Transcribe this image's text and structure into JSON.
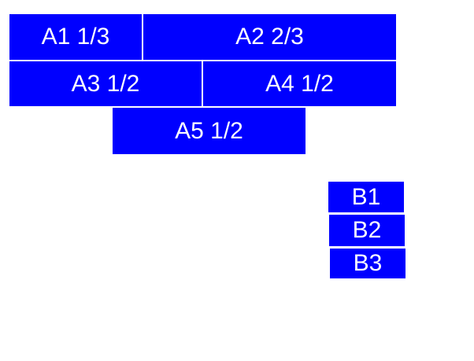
{
  "colors": {
    "canvas_bg": "#ffffff",
    "box_fill": "#0000ff",
    "box_text": "#ffffff"
  },
  "groupA": {
    "items": [
      {
        "id": "A1",
        "label": "A1 1/3",
        "fraction": "1/3"
      },
      {
        "id": "A2",
        "label": "A2 2/3",
        "fraction": "2/3"
      },
      {
        "id": "A3",
        "label": "A3 1/2",
        "fraction": "1/2"
      },
      {
        "id": "A4",
        "label": "A4 1/2",
        "fraction": "1/2"
      },
      {
        "id": "A5",
        "label": "A5 1/2",
        "fraction": "1/2"
      }
    ]
  },
  "groupB": {
    "items": [
      {
        "id": "B1",
        "label": "B1"
      },
      {
        "id": "B2",
        "label": "B2"
      },
      {
        "id": "B3",
        "label": "B3"
      }
    ]
  }
}
